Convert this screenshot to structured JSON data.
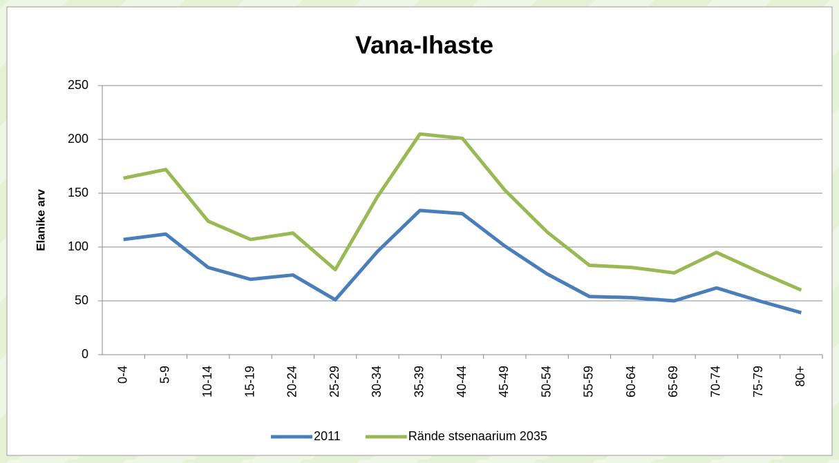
{
  "chart_data": {
    "type": "line",
    "title": "Vana-Ihaste",
    "y_label": "Elanike arv",
    "categories": [
      "0-4",
      "5-9",
      "10-14",
      "15-19",
      "20-24",
      "25-29",
      "30-34",
      "35-39",
      "40-44",
      "45-49",
      "50-54",
      "55-59",
      "60-64",
      "65-69",
      "70-74",
      "75-79",
      "80+"
    ],
    "series": [
      {
        "name": "2011",
        "color": "#4a7ebb",
        "values": [
          107,
          112,
          81,
          70,
          74,
          51,
          96,
          134,
          131,
          101,
          75,
          54,
          53,
          50,
          62,
          50,
          39
        ]
      },
      {
        "name": "Rände stsenaarium 2035",
        "color": "#98b954",
        "values": [
          164,
          172,
          124,
          107,
          113,
          79,
          147,
          205,
          201,
          153,
          114,
          83,
          81,
          76,
          95,
          77,
          60
        ]
      }
    ],
    "ylim": [
      0,
      250
    ],
    "yticks": [
      0,
      50,
      100,
      150,
      200,
      250
    ],
    "grid": true,
    "legend": "bottom"
  }
}
